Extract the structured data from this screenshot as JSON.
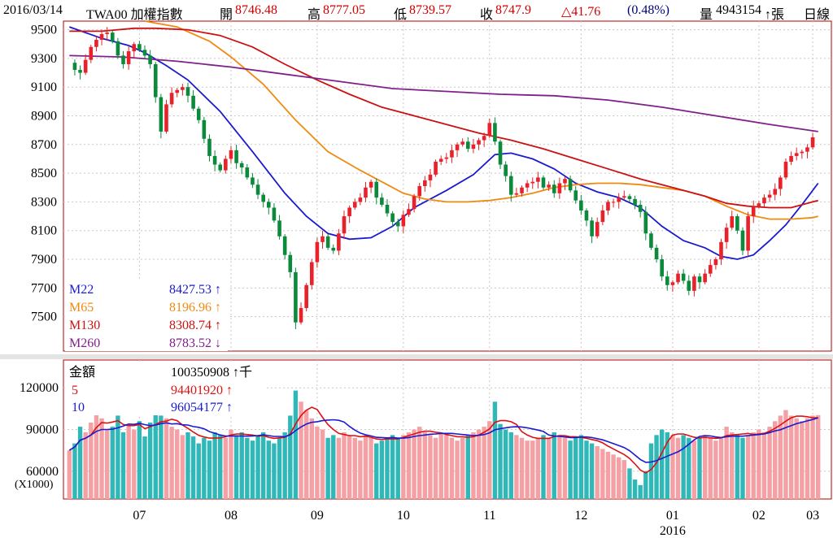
{
  "header": {
    "date": "2016/03/14",
    "ticker": "TWA00 加權指數",
    "open_label": "開",
    "open": "8746.48",
    "high_label": "高",
    "high": "8777.05",
    "low_label": "低",
    "low": "8739.57",
    "close_label": "收",
    "close": "8747.9",
    "change": "△41.76",
    "change_pct": "(0.48%)",
    "volume_label": "量",
    "volume": "4943154",
    "volume_unit": "↑張",
    "period": "日線"
  },
  "chart_data": [
    {
      "type": "candlestick",
      "title": "TWA00 加權指數",
      "ylim": [
        7260,
        9560
      ],
      "y_ticks": [
        "9500",
        "9300",
        "9100",
        "8900",
        "8700",
        "8500",
        "8300",
        "8100",
        "7900",
        "7700",
        "7500"
      ],
      "x_ticks": [
        "07",
        "08",
        "09",
        "10",
        "11",
        "12",
        "01",
        "02",
        "03"
      ],
      "x_year_label": "2016",
      "colors": {
        "up": "#e8212a",
        "down": "#0a8a3a"
      },
      "price_path": [
        [
          0,
          9270
        ],
        [
          1,
          9220
        ],
        [
          2,
          9200
        ],
        [
          3,
          9290
        ],
        [
          4,
          9380
        ],
        [
          5,
          9430
        ],
        [
          6,
          9470
        ],
        [
          7,
          9480
        ],
        [
          8,
          9420
        ],
        [
          9,
          9320
        ],
        [
          10,
          9260
        ],
        [
          11,
          9350
        ],
        [
          12,
          9400
        ],
        [
          13,
          9360
        ],
        [
          14,
          9320
        ],
        [
          15,
          9260
        ],
        [
          16,
          9030
        ],
        [
          17,
          8790
        ],
        [
          18,
          8980
        ],
        [
          19,
          9060
        ],
        [
          20,
          9080
        ],
        [
          21,
          9100
        ],
        [
          22,
          9040
        ],
        [
          23,
          8950
        ],
        [
          24,
          8870
        ],
        [
          25,
          8740
        ],
        [
          26,
          8620
        ],
        [
          27,
          8560
        ],
        [
          28,
          8520
        ],
        [
          29,
          8600
        ],
        [
          30,
          8660
        ],
        [
          31,
          8570
        ],
        [
          32,
          8540
        ],
        [
          33,
          8470
        ],
        [
          34,
          8420
        ],
        [
          35,
          8350
        ],
        [
          36,
          8300
        ],
        [
          37,
          8260
        ],
        [
          38,
          8170
        ],
        [
          39,
          8060
        ],
        [
          40,
          7930
        ],
        [
          41,
          7810
        ],
        [
          42,
          7460
        ],
        [
          43,
          7560
        ],
        [
          44,
          7720
        ],
        [
          45,
          7880
        ],
        [
          46,
          8020
        ],
        [
          47,
          8060
        ],
        [
          48,
          7980
        ],
        [
          49,
          7960
        ],
        [
          50,
          8080
        ],
        [
          51,
          8200
        ],
        [
          52,
          8260
        ],
        [
          53,
          8300
        ],
        [
          54,
          8330
        ],
        [
          55,
          8400
        ],
        [
          56,
          8440
        ],
        [
          57,
          8330
        ],
        [
          58,
          8280
        ],
        [
          59,
          8220
        ],
        [
          60,
          8160
        ],
        [
          61,
          8130
        ],
        [
          62,
          8210
        ],
        [
          63,
          8250
        ],
        [
          64,
          8340
        ],
        [
          65,
          8410
        ],
        [
          66,
          8450
        ],
        [
          67,
          8490
        ],
        [
          68,
          8580
        ],
        [
          69,
          8600
        ],
        [
          70,
          8610
        ],
        [
          71,
          8660
        ],
        [
          72,
          8700
        ],
        [
          73,
          8720
        ],
        [
          74,
          8670
        ],
        [
          75,
          8700
        ],
        [
          76,
          8730
        ],
        [
          77,
          8760
        ],
        [
          78,
          8850
        ],
        [
          79,
          8720
        ],
        [
          80,
          8560
        ],
        [
          81,
          8480
        ],
        [
          82,
          8350
        ],
        [
          83,
          8360
        ],
        [
          84,
          8400
        ],
        [
          85,
          8430
        ],
        [
          86,
          8440
        ],
        [
          87,
          8470
        ],
        [
          88,
          8400
        ],
        [
          89,
          8420
        ],
        [
          90,
          8360
        ],
        [
          91,
          8430
        ],
        [
          92,
          8460
        ],
        [
          93,
          8380
        ],
        [
          94,
          8310
        ],
        [
          95,
          8240
        ],
        [
          96,
          8170
        ],
        [
          97,
          8060
        ],
        [
          98,
          8160
        ],
        [
          99,
          8240
        ],
        [
          100,
          8300
        ],
        [
          101,
          8300
        ],
        [
          102,
          8330
        ],
        [
          103,
          8340
        ],
        [
          104,
          8320
        ],
        [
          105,
          8280
        ],
        [
          106,
          8230
        ],
        [
          107,
          8080
        ],
        [
          108,
          7980
        ],
        [
          109,
          7900
        ],
        [
          110,
          7780
        ],
        [
          111,
          7720
        ],
        [
          112,
          7740
        ],
        [
          113,
          7800
        ],
        [
          114,
          7750
        ],
        [
          115,
          7680
        ],
        [
          116,
          7780
        ],
        [
          117,
          7740
        ],
        [
          118,
          7800
        ],
        [
          119,
          7860
        ],
        [
          120,
          7900
        ],
        [
          121,
          8020
        ],
        [
          122,
          8120
        ],
        [
          123,
          8200
        ],
        [
          124,
          8100
        ],
        [
          125,
          7960
        ],
        [
          126,
          8200
        ],
        [
          127,
          8270
        ],
        [
          128,
          8290
        ],
        [
          129,
          8330
        ],
        [
          130,
          8350
        ],
        [
          131,
          8390
        ],
        [
          132,
          8470
        ],
        [
          133,
          8580
        ],
        [
          134,
          8620
        ],
        [
          135,
          8640
        ],
        [
          136,
          8650
        ],
        [
          137,
          8680
        ],
        [
          138,
          8750
        ]
      ],
      "indicators": [
        {
          "name": "M22",
          "value": "8427.53",
          "arrow": "↑",
          "color": "#1a1ad0",
          "path": [
            [
              0,
              9520
            ],
            [
              6,
              9440
            ],
            [
              11,
              9390
            ],
            [
              14,
              9340
            ],
            [
              18,
              9250
            ],
            [
              22,
              9150
            ],
            [
              28,
              8930
            ],
            [
              34,
              8650
            ],
            [
              40,
              8360
            ],
            [
              44,
              8200
            ],
            [
              48,
              8080
            ],
            [
              52,
              8040
            ],
            [
              56,
              8050
            ],
            [
              60,
              8130
            ],
            [
              64,
              8260
            ],
            [
              70,
              8380
            ],
            [
              75,
              8490
            ],
            [
              79,
              8630
            ],
            [
              82,
              8640
            ],
            [
              86,
              8600
            ],
            [
              90,
              8530
            ],
            [
              94,
              8430
            ],
            [
              98,
              8370
            ],
            [
              102,
              8330
            ],
            [
              106,
              8260
            ],
            [
              110,
              8130
            ],
            [
              114,
              8030
            ],
            [
              118,
              7980
            ],
            [
              121,
              7920
            ],
            [
              124,
              7900
            ],
            [
              127,
              7930
            ],
            [
              130,
              8030
            ],
            [
              133,
              8140
            ],
            [
              136,
              8280
            ],
            [
              139,
              8430
            ]
          ]
        },
        {
          "name": "M65",
          "value": "8196.96",
          "arrow": "↑",
          "color": "#f08a10",
          "path": [
            [
              14,
              9560
            ],
            [
              20,
              9520
            ],
            [
              26,
              9420
            ],
            [
              30,
              9310
            ],
            [
              36,
              9120
            ],
            [
              42,
              8870
            ],
            [
              48,
              8650
            ],
            [
              54,
              8520
            ],
            [
              58,
              8440
            ],
            [
              62,
              8360
            ],
            [
              66,
              8320
            ],
            [
              70,
              8300
            ],
            [
              74,
              8300
            ],
            [
              78,
              8310
            ],
            [
              82,
              8330
            ],
            [
              86,
              8360
            ],
            [
              90,
              8400
            ],
            [
              94,
              8420
            ],
            [
              98,
              8430
            ],
            [
              102,
              8430
            ],
            [
              106,
              8420
            ],
            [
              110,
              8400
            ],
            [
              114,
              8380
            ],
            [
              118,
              8340
            ],
            [
              122,
              8270
            ],
            [
              126,
              8210
            ],
            [
              130,
              8180
            ],
            [
              134,
              8180
            ],
            [
              138,
              8190
            ],
            [
              139,
              8200
            ]
          ]
        },
        {
          "name": "M130",
          "value": "8308.74",
          "arrow": "↑",
          "color": "#cc1111",
          "path": [
            [
              0,
              9490
            ],
            [
              6,
              9490
            ],
            [
              12,
              9510
            ],
            [
              16,
              9510
            ],
            [
              22,
              9500
            ],
            [
              28,
              9460
            ],
            [
              34,
              9380
            ],
            [
              40,
              9260
            ],
            [
              46,
              9150
            ],
            [
              52,
              9050
            ],
            [
              58,
              8960
            ],
            [
              64,
              8900
            ],
            [
              70,
              8840
            ],
            [
              76,
              8780
            ],
            [
              82,
              8730
            ],
            [
              88,
              8670
            ],
            [
              94,
              8600
            ],
            [
              100,
              8530
            ],
            [
              106,
              8460
            ],
            [
              112,
              8400
            ],
            [
              118,
              8340
            ],
            [
              122,
              8290
            ],
            [
              126,
              8270
            ],
            [
              130,
              8260
            ],
            [
              134,
              8260
            ],
            [
              138,
              8300
            ],
            [
              139,
              8310
            ]
          ]
        },
        {
          "name": "M260",
          "value": "8783.52",
          "arrow": "↓",
          "color": "#80208a",
          "path": [
            [
              0,
              9320
            ],
            [
              10,
              9310
            ],
            [
              20,
              9280
            ],
            [
              30,
              9240
            ],
            [
              40,
              9190
            ],
            [
              50,
              9140
            ],
            [
              60,
              9090
            ],
            [
              70,
              9070
            ],
            [
              80,
              9050
            ],
            [
              90,
              9040
            ],
            [
              100,
              9010
            ],
            [
              110,
              8960
            ],
            [
              120,
              8900
            ],
            [
              130,
              8840
            ],
            [
              139,
              8790
            ]
          ]
        }
      ]
    },
    {
      "type": "bar",
      "title": "金額",
      "unit": "(X1000)",
      "ylim": [
        40000,
        140000
      ],
      "y_ticks": [
        "120000",
        "90000",
        "60000"
      ],
      "x_ticks": [
        "07",
        "08",
        "09",
        "10",
        "11",
        "12",
        "01",
        "02",
        "03"
      ],
      "x_year_label": "2016",
      "current": {
        "label": "金額",
        "value": "100350908",
        "unit": "↑千"
      },
      "colors": {
        "up": "#f4a0a4",
        "down": "#30b8b8"
      },
      "values": [
        75000,
        80000,
        92000,
        88000,
        95000,
        102000,
        98000,
        90000,
        92000,
        100000,
        88000,
        94000,
        90000,
        96000,
        85000,
        95000,
        102000,
        100000,
        98000,
        92000,
        90000,
        86000,
        88000,
        85000,
        80000,
        84000,
        82000,
        88000,
        86000,
        84000,
        90000,
        86000,
        88000,
        84000,
        82000,
        86000,
        88000,
        82000,
        80000,
        84000,
        88000,
        100000,
        118000,
        110000,
        104000,
        98000,
        92000,
        90000,
        84000,
        86000,
        84000,
        88000,
        86000,
        84000,
        82000,
        86000,
        84000,
        80000,
        82000,
        84000,
        86000,
        84000,
        86000,
        88000,
        90000,
        92000,
        88000,
        86000,
        84000,
        88000,
        86000,
        84000,
        82000,
        84000,
        86000,
        88000,
        90000,
        92000,
        96000,
        110000,
        94000,
        90000,
        88000,
        86000,
        84000,
        82000,
        82000,
        84000,
        86000,
        84000,
        88000,
        86000,
        84000,
        82000,
        84000,
        86000,
        82000,
        80000,
        78000,
        76000,
        74000,
        72000,
        70000,
        68000,
        62000,
        54000,
        50000,
        60000,
        80000,
        86000,
        90000,
        88000,
        86000,
        84000,
        86000,
        84000,
        82000,
        84000,
        86000,
        84000,
        82000,
        84000,
        92000,
        88000,
        86000,
        84000,
        86000,
        88000,
        90000,
        88000,
        92000,
        96000,
        100000,
        104000,
        100000,
        98000,
        96000,
        98000,
        100000,
        100351
      ],
      "series": [
        {
          "name": "5",
          "value": "94401920",
          "arrow": "↑",
          "color": "#dd1111"
        },
        {
          "name": "10",
          "value": "96054177",
          "arrow": "↑",
          "color": "#1a1ad0"
        }
      ]
    }
  ]
}
